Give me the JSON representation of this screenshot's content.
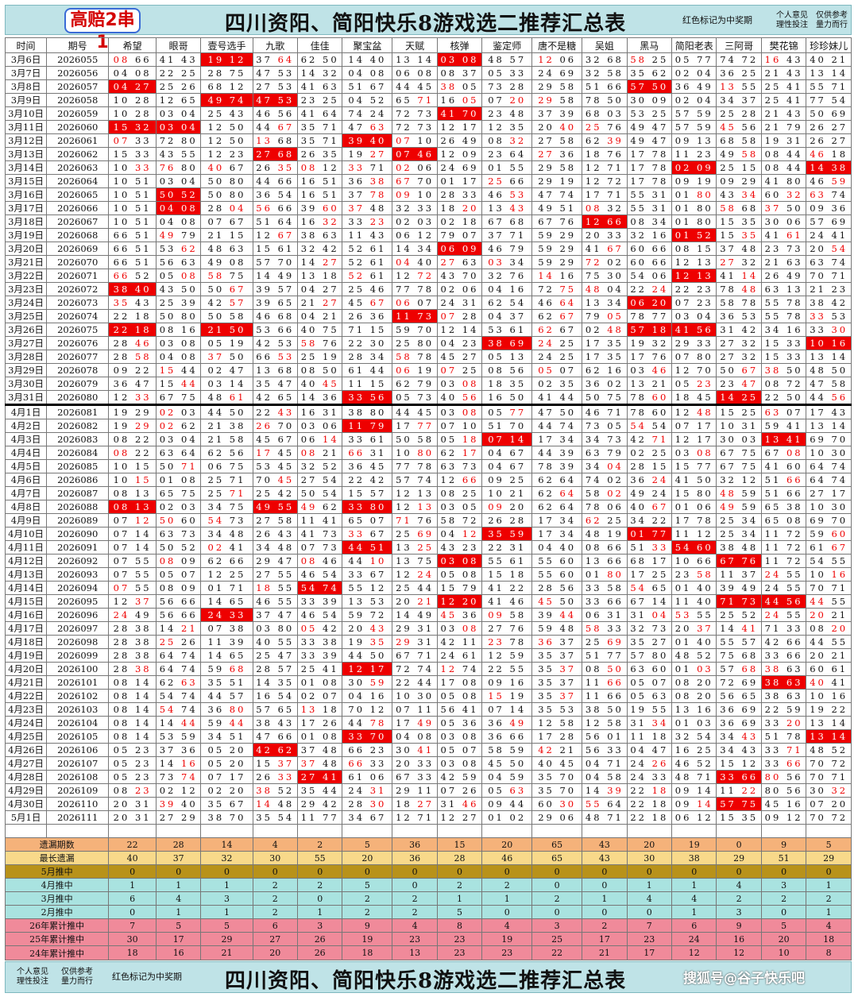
{
  "header": {
    "logo": "高赔2串1",
    "title": "四川资阳、简阳快乐8游戏选二推荐汇总表",
    "note_red": "红色标记为中奖期",
    "note_opinion": "个人意见\n理性投注",
    "note_ref": "仅供参考\n量力而行"
  },
  "watermark": "搜狐号@谷子快乐吧",
  "columns": [
    "时间",
    "期号",
    "希望",
    "眼哥",
    "壹号选手",
    "九歌",
    "佳佳",
    "聚宝盆",
    "天赋",
    "核弹",
    "鉴定师",
    "唐不是糖",
    "吴姐",
    "黑马",
    "简阳老表",
    "三阿哥",
    "樊花锦",
    "珍珍妹儿"
  ],
  "rows": [
    [
      "3月6日",
      "2026055",
      "r08 66",
      "41 43",
      "*19 12",
      "37 r64",
      "62 50",
      "14 40",
      "13 14",
      "*03 08",
      "48 57",
      "r12 06",
      "32 68",
      "r58 25",
      "05 77",
      "74 72",
      "r16 43",
      "40 21"
    ],
    [
      "3月7日",
      "2026056",
      "04 08",
      "22 25",
      "28 75",
      "47 53",
      "14 32",
      "04 08",
      "06 08",
      "08 37",
      "05 33",
      "24 69",
      "32 58",
      "35 62",
      "02 04",
      "36 25",
      "21 43",
      "13 14"
    ],
    [
      "3月8日",
      "2026057",
      "*04 27",
      "25 26",
      "68 12",
      "27 53",
      "41 63",
      "51 67",
      "44 45",
      "r38 05",
      "73 28",
      "29 58",
      "51 66",
      "*57 50",
      "36 49",
      "r13 55",
      "25 41",
      "55 71"
    ],
    [
      "3月9日",
      "2026058",
      "10 28",
      "12 65",
      "*49 74",
      "*47 53",
      "23 25",
      "04 52",
      "65 r71",
      "16 r05",
      "07 r20",
      "r29 58",
      "78 50",
      "30 09",
      "02 04",
      "34 37",
      "25 41",
      "77 54"
    ],
    [
      "3月10日",
      "2026059",
      "10 28",
      "03 04",
      "25 43",
      "46 56",
      "41 64",
      "74 24",
      "72 73",
      "*41 70",
      "23 48",
      "37 39",
      "68 03",
      "53 25",
      "57 59",
      "25 28",
      "21 43",
      "50 69"
    ],
    [
      "3月11日",
      "2026060",
      "*15 32",
      "*03 04",
      "12 50",
      "44 r67",
      "35 71",
      "47 r63",
      "72 73",
      "12 17",
      "12 35",
      "20 r40",
      "r25 76",
      "49 47",
      "57 59",
      "r45 56",
      "21 79",
      "26 27"
    ],
    [
      "3月12日",
      "2026061",
      "r07 33",
      "72 80",
      "12 50",
      "r13 68",
      "35 71",
      "*39 40",
      "r07 10",
      "26 49",
      "08 r32",
      "27 58",
      "62 r39",
      "49 47",
      "09 13",
      "68 58",
      "19 31",
      "26 27"
    ],
    [
      "3月13日",
      "2026062",
      "15 33",
      "43 55",
      "12 23",
      "*27 68",
      "26 35",
      "19 r27",
      "*07 46",
      "12 09",
      "23 64",
      "r27 36",
      "18 76",
      "17 78",
      "11 23",
      "49 r58",
      "08 44",
      "r46 18"
    ],
    [
      "3月14日",
      "2026063",
      "10 r33",
      "r76 80",
      "r40 67",
      "26 r35",
      "r08 12",
      "r33 71",
      "r02 06",
      "24 69",
      "01 55",
      "29 58",
      "12 71",
      "17 78",
      "*02 09",
      "25 15",
      "08 44",
      "*14 38"
    ],
    [
      "3月15日",
      "2026064",
      "10 51",
      "03 04",
      "50 80",
      "44 66",
      "16 51",
      "36 r38",
      "r67 70",
      "01 17",
      "r25 66",
      "29 19",
      "12 72",
      "17 78",
      "09 19",
      "09 29",
      "41 80",
      "46 r59"
    ],
    [
      "3月16日",
      "2026065",
      "10 51",
      "*50 52",
      "50 80",
      "36 54",
      "16 51",
      "37 r78",
      "r09 10",
      "28 33",
      "46 r53",
      "47 74",
      "17 71",
      "55 31",
      "01 r80",
      "43 r34",
      "60 r32",
      "r63 74"
    ],
    [
      "3月17日",
      "2026066",
      "10 51",
      "*04 08",
      "28 r04",
      "r56 66",
      "39 r60",
      "r37 48",
      "32 33",
      "18 r20",
      "13 r43",
      "49 51",
      "r08 32",
      "55 31",
      "01 80",
      "r58 68",
      "r37 50",
      "09 36"
    ],
    [
      "3月18日",
      "2026067",
      "10 51",
      "04 08",
      "07 67",
      "51 64",
      "16 r32",
      "33 r23",
      "02 03",
      "02 18",
      "67 68",
      "67 76",
      "*12 66",
      "08 34",
      "01 80",
      "15 35",
      "30 06",
      "57 69"
    ],
    [
      "3月19日",
      "2026068",
      "66 51",
      "r49 79",
      "21 15",
      "12 r67",
      "38 63",
      "11 43",
      "06 12",
      "79 07",
      "37 71",
      "59 29",
      "20 33",
      "32 16",
      "*01 52",
      "15 r35",
      "41 r61",
      "24 41"
    ],
    [
      "3月20日",
      "2026069",
      "66 51",
      "53 r62",
      "48 63",
      "15 61",
      "32 42",
      "52 61",
      "14 34",
      "*06 09",
      "46 79",
      "59 29",
      "41 r67",
      "60 66",
      "08 15",
      "37 48",
      "23 73",
      "20 r54"
    ],
    [
      "3月21日",
      "2026070",
      "66 51",
      "56 63",
      "49 08",
      "57 70",
      "14 r27",
      "52 61",
      "r04 40",
      "r27 63",
      "r03 34",
      "59 29",
      "r72 02",
      "60 66",
      "12 13",
      "r27 32",
      "21 63",
      "63 74"
    ],
    [
      "3月22日",
      "2026071",
      "r66 52",
      "05 r08",
      "r58 75",
      "14 49",
      "13 18",
      "r52 61",
      "12 r72",
      "43 70",
      "32 76",
      "r14 16",
      "75 30",
      "54 06",
      "*12 13",
      "41 r14",
      "26 49",
      "70 71"
    ],
    [
      "3月23日",
      "2026072",
      "*38 40",
      "43 50",
      "50 r67",
      "39 57",
      "04 27",
      "25 46",
      "77 78",
      "02 06",
      "04 16",
      "72 r75",
      "r48 04",
      "22 r24",
      "22 23",
      "78 r48",
      "63 13",
      "21 23"
    ],
    [
      "3月24日",
      "2026073",
      "r35 43",
      "25 39",
      "42 r57",
      "39 65",
      "21 r27",
      "45 r67",
      "r06 07",
      "24 31",
      "62 54",
      "46 r64",
      "13 34",
      "*06 20",
      "07 23",
      "58 78",
      "55 78",
      "38 42"
    ],
    [
      "3月25日",
      "2026074",
      "22 18",
      "50 80",
      "50 58",
      "46 68",
      "04 21",
      "26 36",
      "*11 73",
      "r07 28",
      "04 37",
      "62 r67",
      "79 r05",
      "78 77",
      "03 04",
      "36 53",
      "55 78",
      "r33 53"
    ],
    [
      "3月26日",
      "2026075",
      "*22 18",
      "08 16",
      "*21 50",
      "53 66",
      "40 75",
      "71 15",
      "59 70",
      "12 14",
      "53 61",
      "r62 67",
      "02 r48",
      "*57 18",
      "*41 56",
      "31 42",
      "34 16",
      "33 r30"
    ],
    [
      "3月27日",
      "2026076",
      "28 r46",
      "03 08",
      "05 19",
      "42 53",
      "r58 76",
      "22 30",
      "25 80",
      "04 23",
      "*38 69",
      "r24 25",
      "17 35",
      "19 32",
      "29 33",
      "27 32",
      "15 33",
      "*10 16"
    ],
    [
      "3月28日",
      "2026077",
      "28 r58",
      "04 08",
      "r37 50",
      "66 r53",
      "25 19",
      "28 34",
      "r58 78",
      "45 27",
      "05 13",
      "24 25",
      "17 35",
      "17 76",
      "07 80",
      "27 32",
      "15 33",
      "13 14"
    ],
    [
      "3月29日",
      "2026078",
      "09 22",
      "r15 44",
      "02 47",
      "13 68",
      "08 50",
      "61 44",
      "r06 19",
      "r07 25",
      "08 56",
      "r05 07",
      "62 16",
      "03 r46",
      "12 70",
      "50 r67",
      "r38 50",
      "48 50"
    ],
    [
      "3月30日",
      "2026079",
      "36 47",
      "15 r44",
      "03 14",
      "35 47",
      "40 r45",
      "11 15",
      "62 79",
      "03 r08",
      "18 35",
      "02 35",
      "36 02",
      "13 21",
      "05 r23",
      "23 r47",
      "08 72",
      "47 58"
    ],
    [
      "3月31日",
      "2026080",
      "12 r33",
      "67 75",
      "48 r61",
      "42 65",
      "14 36",
      "*33 56",
      "05 73",
      "40 r56",
      "16 50",
      "41 44",
      "50 75",
      "78 r60",
      "18 45",
      "*14 25",
      "22 50",
      "44 r56"
    ],
    [
      "4月1日",
      "2026081",
      "19 29",
      "r02 03",
      "44 50",
      "22 r43",
      "16 31",
      "38 80",
      "44 45",
      "03 r08",
      "05 r77",
      "47 50",
      "46 71",
      "78 60",
      "12 r48",
      "15 25",
      "r63 07",
      "17 43"
    ],
    [
      "4月2日",
      "2026082",
      "19 r29",
      "r02 62",
      "21 38",
      "r26 70",
      "03 06",
      "*11 79",
      "17 r77",
      "07 10",
      "51 70",
      "44 74",
      "73 05",
      "r54 54",
      "07 17",
      "10 31",
      "59 41",
      "13 14"
    ],
    [
      "4月3日",
      "2026083",
      "08 22",
      "03 04",
      "21 58",
      "45 67",
      "06 r14",
      "33 61",
      "50 58",
      "05 r18",
      "*07 14",
      "17 34",
      "34 73",
      "42 r71",
      "12 17",
      "30 03",
      "*13 41",
      "69 70"
    ],
    [
      "4月4日",
      "2026084",
      "r08 22",
      "63 64",
      "62 56",
      "r17 45",
      "r08 21",
      "r66 31",
      "10 r80",
      "62 r17",
      "04 67",
      "44 39",
      "63 79",
      "02 25",
      "03 r08",
      "67 75",
      "67 r08",
      "10 30"
    ],
    [
      "4月5日",
      "2026085",
      "10 15",
      "50 r71",
      "06 75",
      "53 45",
      "32 52",
      "36 45",
      "77 78",
      "63 73",
      "04 67",
      "78 39",
      "34 r04",
      "28 15",
      "15 77",
      "67 75",
      "41 60",
      "64 74"
    ],
    [
      "4月6日",
      "2026086",
      "10 r15",
      "01 08",
      "25 71",
      "70 r45",
      "27 54",
      "22 42",
      "57 74",
      "12 r66",
      "09 25",
      "62 64",
      "74 02",
      "36 r24",
      "41 50",
      "32 12",
      "51 r66",
      "64 74"
    ],
    [
      "4月7日",
      "2026087",
      "08 13",
      "65 75",
      "25 r71",
      "25 42",
      "50 54",
      "15 57",
      "12 13",
      "08 25",
      "10 21",
      "62 r64",
      "58 r02",
      "49 24",
      "15 80",
      "r48 59",
      "51 66",
      "27 17"
    ],
    [
      "4月8日",
      "2026088",
      "*08 13",
      "02 03",
      "34 75",
      "*49 55",
      "r49 62",
      "*33 80",
      "12 r13",
      "03 05",
      "r09 20",
      "62 64",
      "78 06",
      "40 r67",
      "01 06",
      "r49 59",
      "65 38",
      "10 30"
    ],
    [
      "4月9日",
      "2026089",
      "07 r12",
      "r50 60",
      "r54 73",
      "27 58",
      "11 41",
      "65 07",
      "r71 76",
      "58 72",
      "26 28",
      "17 34",
      "r62 25",
      "34 22",
      "17 78",
      "25 34",
      "65 08",
      "69 70"
    ],
    [
      "4月10日",
      "2026090",
      "07 14",
      "63 73",
      "34 48",
      "26 43",
      "41 73",
      "r33 67",
      "25 r69",
      "04 r12",
      "*35 59",
      "17 34",
      "48 19",
      "*01 77",
      "11 12",
      "25 34",
      "11 72",
      "59 r60"
    ],
    [
      "4月11日",
      "2026091",
      "07 14",
      "50 52",
      "r02 41",
      "34 48",
      "07 73",
      "*44 51",
      "13 r25",
      "43 23",
      "22 31",
      "04 40",
      "08 66",
      "51 r33",
      "*54 60",
      "38 48",
      "11 72",
      "61 r67"
    ],
    [
      "4月12日",
      "2026092",
      "07 55",
      "r08 09",
      "62 66",
      "29 47",
      "r08 46",
      "44 r10",
      "13 75",
      "*03 08",
      "55 61",
      "55 60",
      "13 66",
      "68 17",
      "10 66",
      "*67 76",
      "11 72",
      "54 55"
    ],
    [
      "4月13日",
      "2026093",
      "07 55",
      "05 07",
      "12 25",
      "27 55",
      "46 54",
      "33 67",
      "12 r24",
      "05 08",
      "15 18",
      "55 60",
      "01 r80",
      "17 25",
      "23 r58",
      "11 37",
      "r24 55",
      "10 r16"
    ],
    [
      "4月14日",
      "2026094",
      "r07 55",
      "08 09",
      "01 71",
      "r18 55",
      "*54 74",
      "55 12",
      "25 44",
      "15 79",
      "41 22",
      "28 56",
      "33 58",
      "r54 65",
      "01 40",
      "39 49",
      "24 55",
      "70 71"
    ],
    [
      "4月15日",
      "2026095",
      "12 r37",
      "56 66",
      "14 65",
      "46 55",
      "33 39",
      "13 53",
      "20 r21",
      "*12 20",
      "41 46",
      "r45 50",
      "33 66",
      "67 14",
      "11 40",
      "*71 73",
      "*44 56",
      "r44 55"
    ],
    [
      "4月16日",
      "2026096",
      "r24 49",
      "56 66",
      "*24 33",
      "37 47",
      "46 54",
      "59 72",
      "14 49",
      "r45 36",
      "r09 58",
      "39 r44",
      "06 31",
      "31 r04",
      "r53 55",
      "25 52",
      "r24 55",
      "r20 21"
    ],
    [
      "4月17日",
      "2026097",
      "28 38",
      "14 r21",
      "07 38",
      "03 80",
      "r05 42",
      "20 r43",
      "29 31",
      "03 r08",
      "27 76",
      "59 48",
      "r58 33",
      "32 73",
      "20 r37",
      "14 r41",
      "71 33",
      "08 r20"
    ],
    [
      "4月18日",
      "2026098",
      "28 38",
      "r25 26",
      "11 39",
      "40 55",
      "33 38",
      "19 r35",
      "r29 31",
      "42 11",
      "r23 78",
      "r36 37",
      "25 r69",
      "35 27",
      "01 40",
      "55 57",
      "42 66",
      "44 55"
    ],
    [
      "4月19日",
      "2026099",
      "28 38",
      "64 74",
      "14 65",
      "25 47",
      "33 39",
      "44 50",
      "67 71",
      "24 61",
      "12 59",
      "35 37",
      "51 77",
      "57 80",
      "48 52",
      "75 68",
      "33 66",
      "20 21"
    ],
    [
      "4月20日",
      "2026100",
      "28 r38",
      "64 74",
      "59 r68",
      "28 57",
      "25 41",
      "*12 17",
      "72 74",
      "r12 74",
      "22 55",
      "35 r37",
      "08 r50",
      "63 60",
      "01 r03",
      "57 r68",
      "r38 63",
      "60 61"
    ],
    [
      "4月21日",
      "2026101",
      "08 14",
      "62 r63",
      "35 51",
      "14 35",
      "01 08",
      "30 r59",
      "22 44",
      "17 08",
      "09 16",
      "35 37",
      "11 r66",
      "05 07",
      "08 20",
      "72 69",
      "*38 63",
      "r40 41"
    ],
    [
      "4月22日",
      "2026102",
      "08 14",
      "54 74",
      "44 57",
      "16 54",
      "02 07",
      "04 16",
      "10 30",
      "05 08",
      "r15 19",
      "35 r37",
      "11 66",
      "05 63",
      "08 20",
      "56 65",
      "38 63",
      "10 16"
    ],
    [
      "4月23日",
      "2026103",
      "08 14",
      "r54 74",
      "36 r80",
      "57 65",
      "r13 18",
      "70 12",
      "07 11",
      "56 41",
      "07 14",
      "35 53",
      "38 50",
      "19 55",
      "13 16",
      "36 69",
      "22 59",
      "19 22"
    ],
    [
      "4月24日",
      "2026104",
      "08 14",
      "14 r44",
      "59 r44",
      "38 43",
      "17 26",
      "44 r78",
      "17 r49",
      "05 36",
      "36 r49",
      "12 58",
      "12 58",
      "31 r34",
      "01 03",
      "36 69",
      "33 r20",
      "13 14"
    ],
    [
      "4月25日",
      "2026105",
      "08 14",
      "53 59",
      "34 51",
      "47 66",
      "01 08",
      "*33 70",
      "04 08",
      "03 08",
      "36 66",
      "17 28",
      "56 01",
      "11 18",
      "32 54",
      "34 r43",
      "51 78",
      "*13 14"
    ],
    [
      "4月26日",
      "2026106",
      "05 23",
      "37 36",
      "05 20",
      "*42 62",
      "37 48",
      "66 23",
      "30 r41",
      "05 07",
      "58 59",
      "r42 21",
      "56 33",
      "04 47",
      "16 25",
      "34 43",
      "33 r71",
      "48 52"
    ],
    [
      "4月27日",
      "2026107",
      "05 23",
      "14 r16",
      "05 20",
      "15 r37",
      "r37 48",
      "r66 33",
      "20 33",
      "03 08",
      "45 50",
      "40 45",
      "04 71",
      "24 r26",
      "46 52",
      "15 12",
      "33 r66",
      "70 72"
    ],
    [
      "4月28日",
      "2026108",
      "05 23",
      "73 r74",
      "07 17",
      "26 r33",
      "*27 41",
      "61 06",
      "67 33",
      "42 59",
      "04 59",
      "35 70",
      "04 58",
      "24 33",
      "48 71",
      "*33 66",
      "r80 56",
      "70 71"
    ],
    [
      "4月29日",
      "2026109",
      "08 r23",
      "02 12",
      "02 20",
      "r38 52",
      "35 44",
      "24 r31",
      "29 11",
      "07 26",
      "05 r63",
      "35 70",
      "14 r39",
      "22 r18",
      "09 14",
      "11 r22",
      "80 56",
      "30 r32"
    ],
    [
      "4月30日",
      "2026110",
      "20 31",
      "r39 40",
      "35 67",
      "r14 48",
      "29 42",
      "28 r30",
      "18 r27",
      "31 r46",
      "09 44",
      "60 r30",
      "r55 64",
      "22 18",
      "09 r14",
      "*57 75",
      "45 16",
      "07 20"
    ],
    [
      "5月1日",
      "2026111",
      "20 31",
      "27 29",
      "38 70",
      "35 54",
      "11 77",
      "34 67",
      "12 71",
      "12 27",
      "01 02",
      "29 06",
      "48 71",
      "22 18",
      "06 12",
      "15 35",
      "09 12",
      "70 72"
    ]
  ],
  "stats": [
    {
      "label": "遗漏期数",
      "bg": "#f5b27a",
      "v": [
        "22",
        "28",
        "14",
        "4",
        "2",
        "5",
        "36",
        "15",
        "20",
        "65",
        "43",
        "20",
        "19",
        "0",
        "9",
        "5"
      ]
    },
    {
      "label": "最长遗漏",
      "bg": "#f8d98a",
      "v": [
        "40",
        "37",
        "32",
        "30",
        "55",
        "20",
        "36",
        "28",
        "46",
        "65",
        "43",
        "30",
        "38",
        "29",
        "51",
        "29"
      ]
    },
    {
      "label": "5月推中",
      "bg": "#b8921a",
      "v": [
        "0",
        "0",
        "0",
        "0",
        "0",
        "0",
        "0",
        "0",
        "0",
        "0",
        "0",
        "0",
        "0",
        "0",
        "0",
        "0"
      ]
    },
    {
      "label": "4月推中",
      "bg": "#a9e3e0",
      "v": [
        "1",
        "1",
        "1",
        "2",
        "2",
        "5",
        "0",
        "2",
        "2",
        "0",
        "0",
        "1",
        "1",
        "4",
        "3",
        "1"
      ]
    },
    {
      "label": "3月推中",
      "bg": "#a9e3e0",
      "v": [
        "6",
        "4",
        "3",
        "2",
        "0",
        "2",
        "2",
        "1",
        "1",
        "2",
        "1",
        "4",
        "4",
        "2",
        "2",
        "2"
      ]
    },
    {
      "label": "2月推中",
      "bg": "#a9e3e0",
      "v": [
        "0",
        "1",
        "1",
        "2",
        "1",
        "2",
        "2",
        "5",
        "0",
        "0",
        "0",
        "0",
        "1",
        "3",
        "0",
        "1"
      ]
    },
    {
      "label": "26年累计推中",
      "bg": "#f08a9a",
      "v": [
        "7",
        "5",
        "5",
        "6",
        "3",
        "9",
        "4",
        "8",
        "4",
        "3",
        "2",
        "7",
        "6",
        "9",
        "5",
        "4"
      ]
    },
    {
      "label": "25年累计推中",
      "bg": "#f08a9a",
      "v": [
        "30",
        "17",
        "29",
        "27",
        "26",
        "19",
        "23",
        "23",
        "19",
        "25",
        "17",
        "23",
        "24",
        "16",
        "20",
        "18"
      ]
    },
    {
      "label": "24年累计推中",
      "bg": "#f08a9a",
      "v": [
        "18",
        "16",
        "21",
        "20",
        "26",
        "18",
        "13",
        "23",
        "23",
        "22",
        "21",
        "17",
        "12",
        "12",
        "10",
        "8"
      ]
    }
  ]
}
